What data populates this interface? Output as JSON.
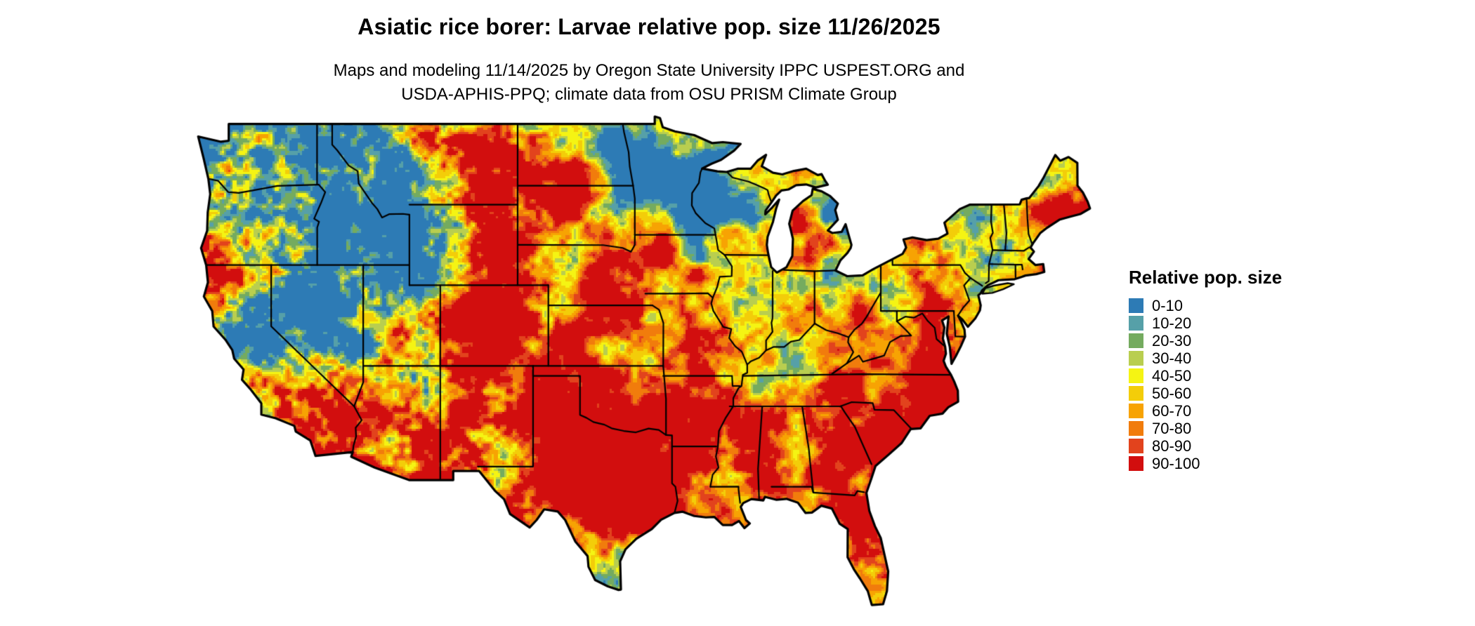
{
  "title": "Asiatic rice borer: Larvae relative pop. size 11/26/2025",
  "subtitle_line1": "Maps and modeling 11/14/2025 by Oregon State University IPPC USPEST.ORG and",
  "subtitle_line2": "USDA-APHIS-PPQ; climate data from OSU PRISM Climate Group",
  "map_region": "Contiguous United States",
  "legend": {
    "title": "Relative pop. size",
    "items": [
      {
        "label": "0-10",
        "color": "#2d7bb5"
      },
      {
        "label": "10-20",
        "color": "#56a0a8"
      },
      {
        "label": "20-30",
        "color": "#74ab5f"
      },
      {
        "label": "30-40",
        "color": "#b9ce4f"
      },
      {
        "label": "40-50",
        "color": "#f5f413"
      },
      {
        "label": "50-60",
        "color": "#f3cd09"
      },
      {
        "label": "60-70",
        "color": "#f7a303"
      },
      {
        "label": "70-80",
        "color": "#f17c0c"
      },
      {
        "label": "80-90",
        "color": "#e2431d"
      },
      {
        "label": "90-100",
        "color": "#d20e0e"
      }
    ]
  }
}
